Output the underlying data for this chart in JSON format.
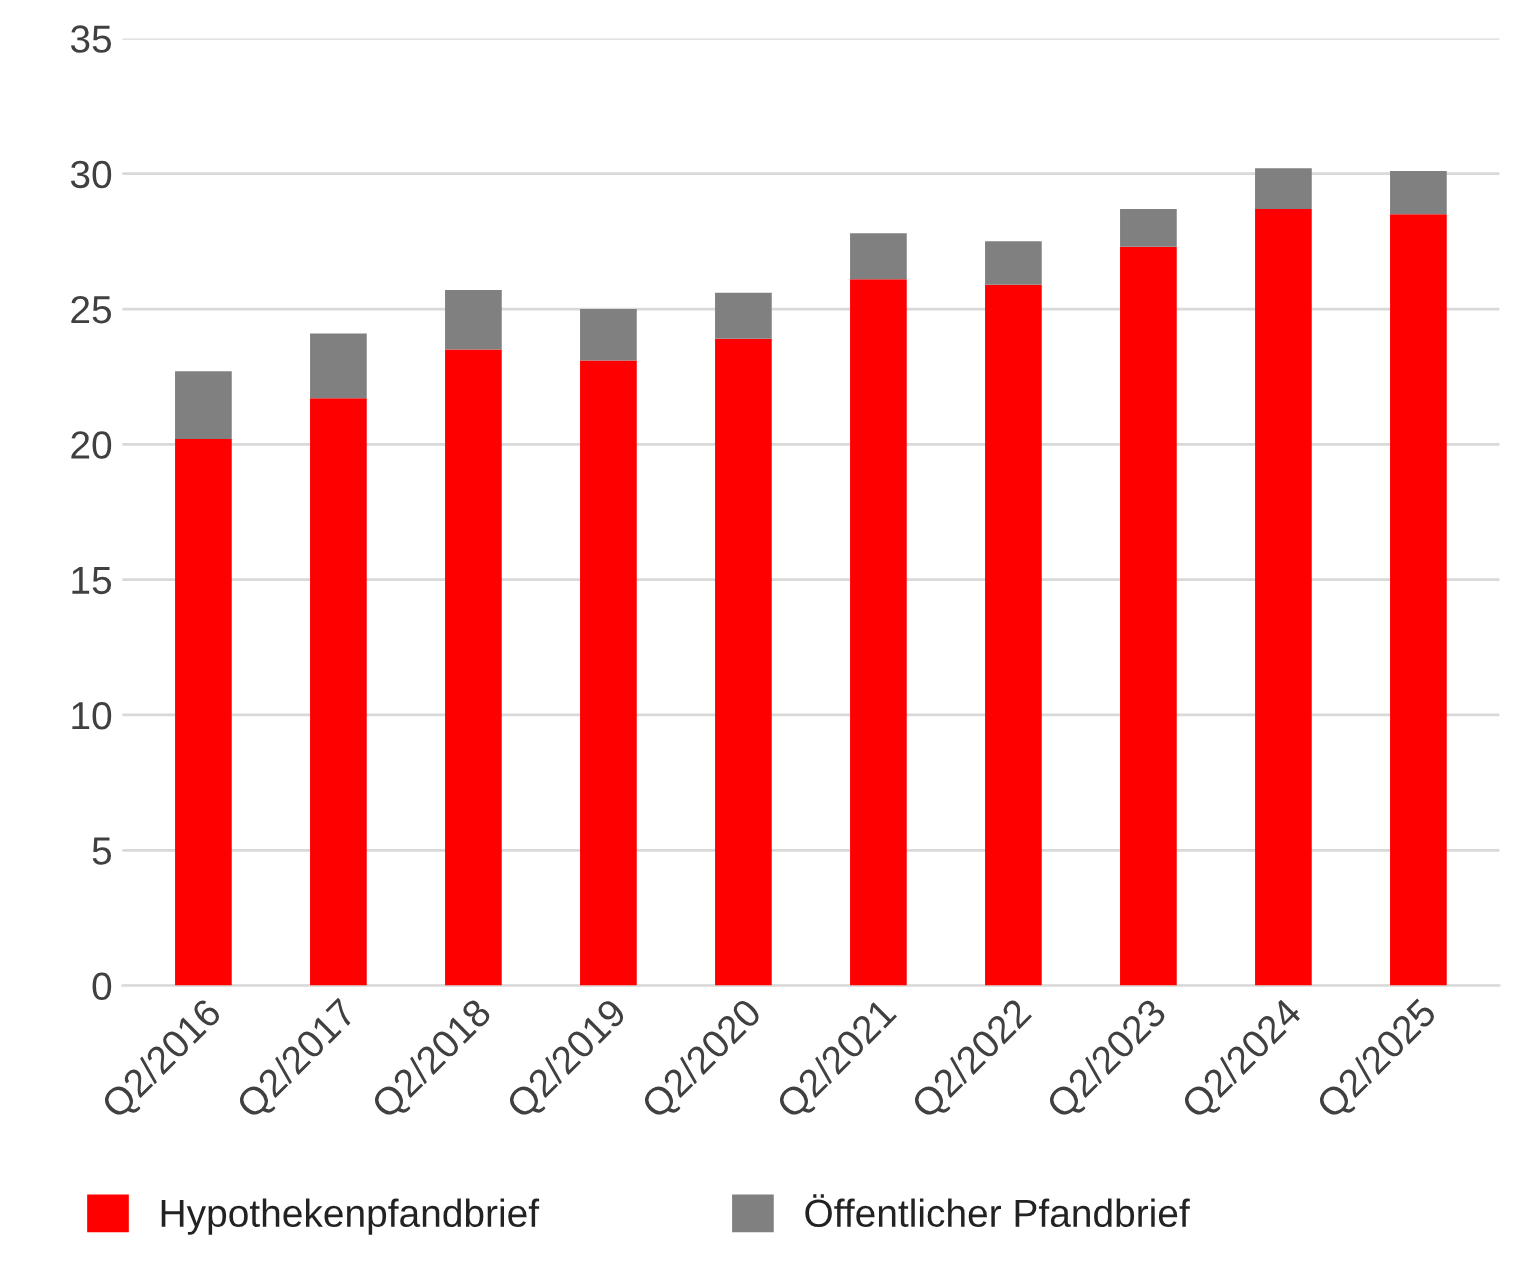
{
  "chart_data": {
    "type": "bar",
    "stacked": true,
    "categories": [
      "Q2/2016",
      "Q2/2017",
      "Q2/2018",
      "Q2/2019",
      "Q2/2020",
      "Q2/2021",
      "Q2/2022",
      "Q2/2023",
      "Q2/2024",
      "Q2/2025"
    ],
    "series": [
      {
        "name": "Hypothekenpfandbrief",
        "color": "#ff0000",
        "values": [
          20.2,
          21.7,
          23.5,
          23.1,
          23.9,
          26.1,
          25.9,
          27.3,
          28.7,
          28.5
        ]
      },
      {
        "name": "Öffentlicher Pfandbrief",
        "color": "#808080",
        "values": [
          2.5,
          2.4,
          2.2,
          1.9,
          1.7,
          1.7,
          1.6,
          1.4,
          1.5,
          1.6
        ]
      }
    ],
    "ylim": [
      0,
      35
    ],
    "yticks": [
      0,
      5,
      10,
      15,
      20,
      25,
      30,
      35
    ],
    "grid": "y",
    "legend": "bottom left"
  }
}
